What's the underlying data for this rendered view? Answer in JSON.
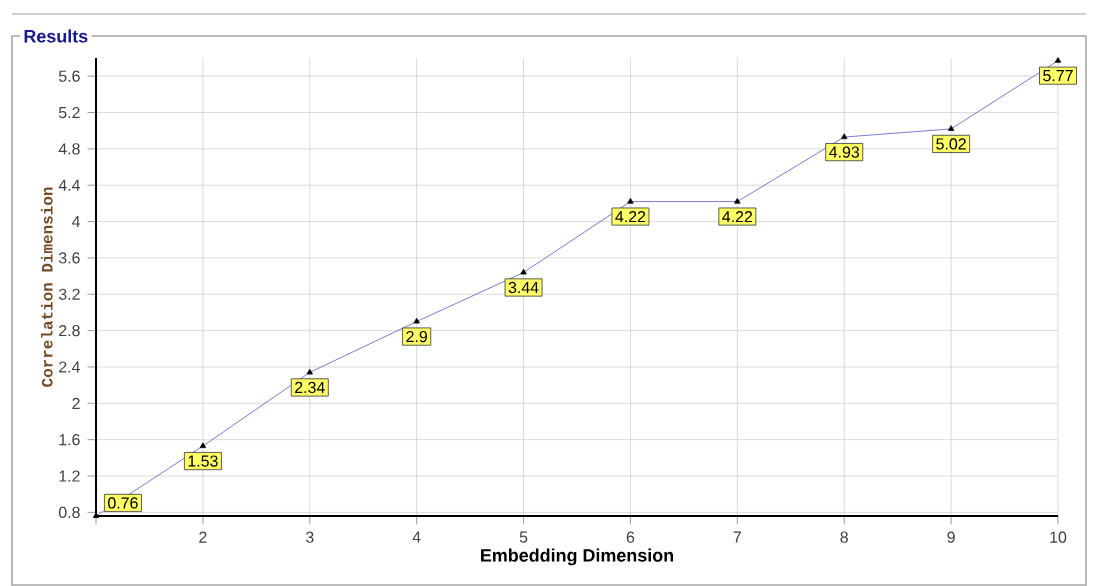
{
  "chart_data": {
    "type": "line",
    "title": "Results",
    "xlabel": "Embedding Dimension",
    "ylabel": "Correlation Dimension",
    "x": [
      1,
      2,
      3,
      4,
      5,
      6,
      7,
      8,
      9,
      10
    ],
    "values": [
      0.76,
      1.53,
      2.34,
      2.9,
      3.44,
      4.22,
      4.22,
      4.93,
      5.02,
      5.77
    ],
    "color": "#5b5bc8",
    "marker": "triangle",
    "data_labels": true,
    "grid": true,
    "xlim": [
      1,
      10
    ],
    "xticks": [
      {
        "value": 1,
        "label": null
      },
      2,
      3,
      4,
      5,
      6,
      7,
      8,
      9,
      10
    ],
    "ylim": [
      0.76,
      5.8
    ],
    "yticks": [
      0.8,
      1.2,
      1.6,
      2,
      2.4,
      2.8,
      3.2,
      3.6,
      4,
      4.4,
      4.8,
      5.2,
      5.6
    ]
  }
}
